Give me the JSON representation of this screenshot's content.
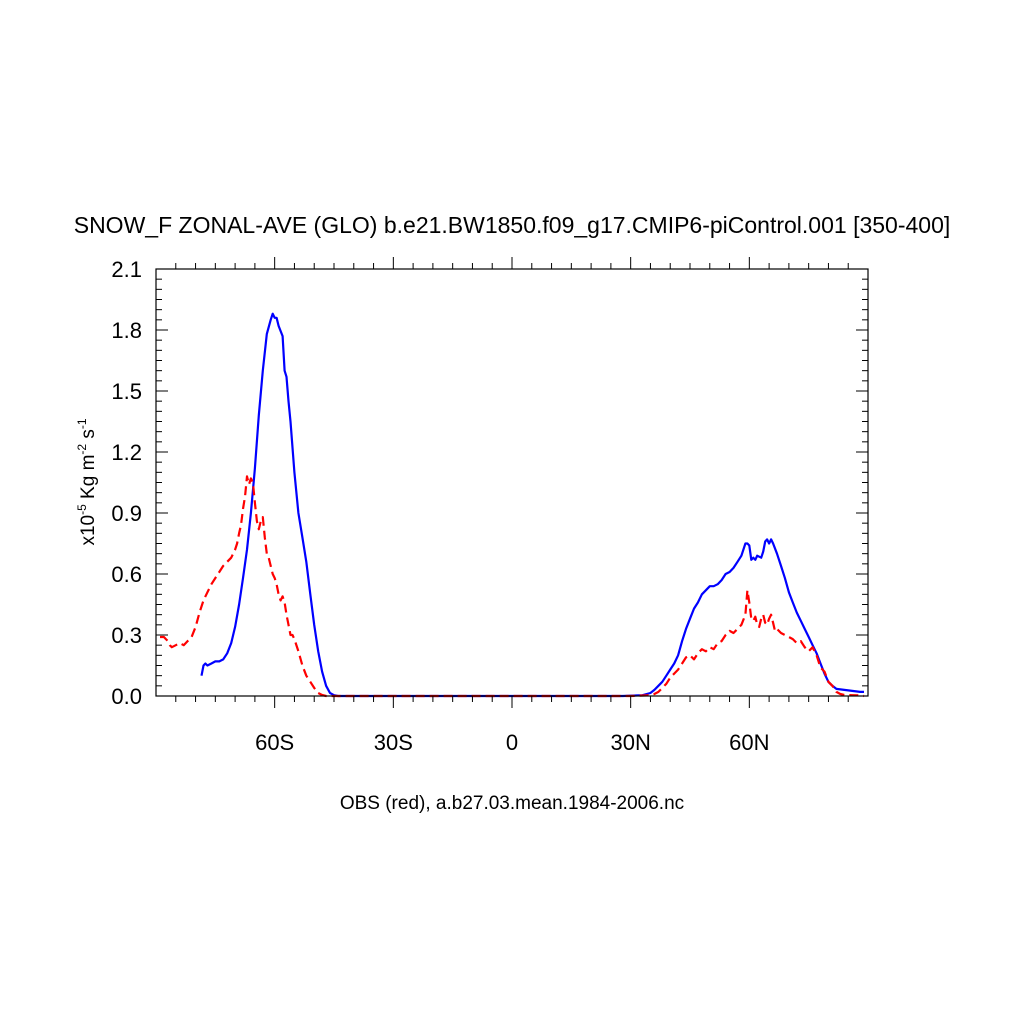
{
  "chart_data": {
    "type": "line",
    "title": "SNOW_F ZONAL-AVE (GLO) b.e21.BW1850.f09_g17.CMIP6-piControl.001 [350-400]",
    "xlabel": "OBS (red), a.b27.03.mean.1984-2006.nc",
    "ylabel": {
      "prefix": "x10",
      "exp1": "-5",
      "mid": " Kg m",
      "exp2": "-2",
      "mid2": " s",
      "exp3": "-1"
    },
    "xlim": [
      -90,
      90
    ],
    "ylim": [
      0,
      2.1
    ],
    "x_ticks": [
      {
        "value": -60,
        "label": "60S"
      },
      {
        "value": -30,
        "label": "30S"
      },
      {
        "value": 0,
        "label": "0"
      },
      {
        "value": 30,
        "label": "30N"
      },
      {
        "value": 60,
        "label": "60N"
      }
    ],
    "y_ticks": [
      {
        "value": 0.0,
        "label": "0.0"
      },
      {
        "value": 0.3,
        "label": "0.3"
      },
      {
        "value": 0.6,
        "label": "0.6"
      },
      {
        "value": 0.9,
        "label": "0.9"
      },
      {
        "value": 1.2,
        "label": "1.2"
      },
      {
        "value": 1.5,
        "label": "1.5"
      },
      {
        "value": 1.8,
        "label": "1.8"
      },
      {
        "value": 2.1,
        "label": "2.1"
      }
    ],
    "series": [
      {
        "color": "#0000ff",
        "dash": "solid",
        "points": [
          [
            -78.5,
            0.1
          ],
          [
            -78,
            0.15
          ],
          [
            -77.5,
            0.16
          ],
          [
            -77,
            0.15
          ],
          [
            -76,
            0.16
          ],
          [
            -75,
            0.17
          ],
          [
            -74,
            0.17
          ],
          [
            -73,
            0.18
          ],
          [
            -72,
            0.21
          ],
          [
            -71,
            0.26
          ],
          [
            -70,
            0.34
          ],
          [
            -69,
            0.45
          ],
          [
            -68,
            0.58
          ],
          [
            -67,
            0.72
          ],
          [
            -66,
            0.9
          ],
          [
            -65,
            1.12
          ],
          [
            -64,
            1.38
          ],
          [
            -63,
            1.6
          ],
          [
            -62,
            1.78
          ],
          [
            -61,
            1.85
          ],
          [
            -60.5,
            1.88
          ],
          [
            -60,
            1.86
          ],
          [
            -59.5,
            1.86
          ],
          [
            -59,
            1.82
          ],
          [
            -58,
            1.77
          ],
          [
            -57.5,
            1.6
          ],
          [
            -57,
            1.57
          ],
          [
            -56.5,
            1.45
          ],
          [
            -56,
            1.35
          ],
          [
            -55,
            1.1
          ],
          [
            -54,
            0.9
          ],
          [
            -53,
            0.78
          ],
          [
            -52,
            0.66
          ],
          [
            -51,
            0.5
          ],
          [
            -50,
            0.35
          ],
          [
            -49,
            0.22
          ],
          [
            -48,
            0.12
          ],
          [
            -47,
            0.05
          ],
          [
            -46,
            0.015
          ],
          [
            -45,
            0.004
          ],
          [
            -44,
            0.0
          ],
          [
            -30,
            0.0
          ],
          [
            0,
            0.0
          ],
          [
            28,
            0.0
          ],
          [
            33,
            0.004
          ],
          [
            35,
            0.015
          ],
          [
            36,
            0.03
          ],
          [
            37,
            0.05
          ],
          [
            38,
            0.07
          ],
          [
            39,
            0.1
          ],
          [
            40,
            0.13
          ],
          [
            41,
            0.16
          ],
          [
            42,
            0.2
          ],
          [
            43,
            0.27
          ],
          [
            44,
            0.33
          ],
          [
            45,
            0.38
          ],
          [
            46,
            0.43
          ],
          [
            47,
            0.46
          ],
          [
            48,
            0.5
          ],
          [
            49,
            0.52
          ],
          [
            50,
            0.54
          ],
          [
            51,
            0.54
          ],
          [
            52,
            0.55
          ],
          [
            53,
            0.57
          ],
          [
            54,
            0.6
          ],
          [
            55,
            0.61
          ],
          [
            56,
            0.63
          ],
          [
            57,
            0.66
          ],
          [
            58,
            0.69
          ],
          [
            59,
            0.75
          ],
          [
            59.5,
            0.75
          ],
          [
            60,
            0.74
          ],
          [
            60.5,
            0.67
          ],
          [
            61,
            0.68
          ],
          [
            61.5,
            0.67
          ],
          [
            62,
            0.69
          ],
          [
            63,
            0.68
          ],
          [
            63.5,
            0.71
          ],
          [
            64,
            0.76
          ],
          [
            64.5,
            0.77
          ],
          [
            65,
            0.75
          ],
          [
            65.5,
            0.77
          ],
          [
            66,
            0.75
          ],
          [
            67,
            0.7
          ],
          [
            68,
            0.64
          ],
          [
            69,
            0.58
          ],
          [
            70,
            0.51
          ],
          [
            71,
            0.46
          ],
          [
            72,
            0.41
          ],
          [
            73,
            0.37
          ],
          [
            74,
            0.33
          ],
          [
            75,
            0.29
          ],
          [
            76,
            0.25
          ],
          [
            77,
            0.21
          ],
          [
            78,
            0.16
          ],
          [
            79,
            0.11
          ],
          [
            80,
            0.07
          ],
          [
            81,
            0.05
          ],
          [
            82,
            0.035
          ],
          [
            84,
            0.03
          ],
          [
            86,
            0.025
          ],
          [
            88,
            0.02
          ],
          [
            89,
            0.02
          ]
        ]
      },
      {
        "color": "#ff0000",
        "dash": "dashed",
        "points": [
          [
            -89,
            0.29
          ],
          [
            -88,
            0.29
          ],
          [
            -87.5,
            0.28
          ],
          [
            -87,
            0.27
          ],
          [
            -86.5,
            0.25
          ],
          [
            -86,
            0.24
          ],
          [
            -85,
            0.25
          ],
          [
            -84,
            0.26
          ],
          [
            -83,
            0.25
          ],
          [
            -82,
            0.27
          ],
          [
            -81,
            0.29
          ],
          [
            -80,
            0.34
          ],
          [
            -79,
            0.41
          ],
          [
            -78,
            0.47
          ],
          [
            -77,
            0.51
          ],
          [
            -76,
            0.55
          ],
          [
            -75,
            0.58
          ],
          [
            -74,
            0.61
          ],
          [
            -73,
            0.64
          ],
          [
            -72,
            0.66
          ],
          [
            -71,
            0.68
          ],
          [
            -70,
            0.72
          ],
          [
            -69.5,
            0.75
          ],
          [
            -69,
            0.8
          ],
          [
            -68.5,
            0.84
          ],
          [
            -68,
            0.92
          ],
          [
            -67.5,
            0.98
          ],
          [
            -67,
            1.08
          ],
          [
            -66.5,
            1.04
          ],
          [
            -66,
            1.07
          ],
          [
            -65.5,
            1.05
          ],
          [
            -65,
            0.95
          ],
          [
            -64.5,
            0.86
          ],
          [
            -64,
            0.82
          ],
          [
            -63.5,
            0.86
          ],
          [
            -63,
            0.88
          ],
          [
            -62.5,
            0.78
          ],
          [
            -62,
            0.7
          ],
          [
            -61.5,
            0.68
          ],
          [
            -61,
            0.64
          ],
          [
            -60.5,
            0.6
          ],
          [
            -60,
            0.58
          ],
          [
            -59.5,
            0.55
          ],
          [
            -59,
            0.5
          ],
          [
            -58.5,
            0.47
          ],
          [
            -58,
            0.49
          ],
          [
            -57.5,
            0.46
          ],
          [
            -57,
            0.4
          ],
          [
            -56.5,
            0.35
          ],
          [
            -56,
            0.3
          ],
          [
            -55.5,
            0.3
          ],
          [
            -55,
            0.28
          ],
          [
            -54,
            0.22
          ],
          [
            -53,
            0.15
          ],
          [
            -52,
            0.1
          ],
          [
            -51,
            0.07
          ],
          [
            -50,
            0.04
          ],
          [
            -49,
            0.015
          ],
          [
            -48,
            0.005
          ],
          [
            -47,
            0.0
          ],
          [
            -30,
            0.0
          ],
          [
            0,
            0.0
          ],
          [
            30,
            0.0
          ],
          [
            34,
            0.003
          ],
          [
            36,
            0.01
          ],
          [
            37,
            0.02
          ],
          [
            38,
            0.04
          ],
          [
            39,
            0.06
          ],
          [
            40,
            0.09
          ],
          [
            41,
            0.11
          ],
          [
            42,
            0.13
          ],
          [
            43,
            0.16
          ],
          [
            44,
            0.19
          ],
          [
            45,
            0.2
          ],
          [
            46,
            0.18
          ],
          [
            47,
            0.21
          ],
          [
            48,
            0.23
          ],
          [
            49,
            0.22
          ],
          [
            50,
            0.24
          ],
          [
            51,
            0.23
          ],
          [
            52,
            0.26
          ],
          [
            53,
            0.27
          ],
          [
            54,
            0.3
          ],
          [
            55,
            0.32
          ],
          [
            56,
            0.31
          ],
          [
            57,
            0.33
          ],
          [
            58,
            0.35
          ],
          [
            59,
            0.4
          ],
          [
            59.5,
            0.52
          ],
          [
            60,
            0.46
          ],
          [
            60.5,
            0.38
          ],
          [
            61,
            0.37
          ],
          [
            61.5,
            0.39
          ],
          [
            62,
            0.35
          ],
          [
            62.5,
            0.34
          ],
          [
            63,
            0.38
          ],
          [
            63.5,
            0.4
          ],
          [
            64,
            0.36
          ],
          [
            64.5,
            0.35
          ],
          [
            65,
            0.38
          ],
          [
            65.5,
            0.4
          ],
          [
            66,
            0.36
          ],
          [
            66.5,
            0.32
          ],
          [
            67,
            0.33
          ],
          [
            68,
            0.31
          ],
          [
            69,
            0.3
          ],
          [
            70,
            0.29
          ],
          [
            71,
            0.28
          ],
          [
            72,
            0.26
          ],
          [
            73,
            0.27
          ],
          [
            74,
            0.24
          ],
          [
            75,
            0.22
          ],
          [
            76,
            0.24
          ],
          [
            77,
            0.2
          ],
          [
            78,
            0.14
          ],
          [
            79,
            0.12
          ],
          [
            80,
            0.07
          ],
          [
            81,
            0.05
          ],
          [
            82,
            0.02
          ],
          [
            83,
            0.01
          ],
          [
            84,
            0.005
          ],
          [
            86,
            0.004
          ],
          [
            88,
            0.003
          ],
          [
            89,
            0.0
          ]
        ]
      }
    ]
  }
}
